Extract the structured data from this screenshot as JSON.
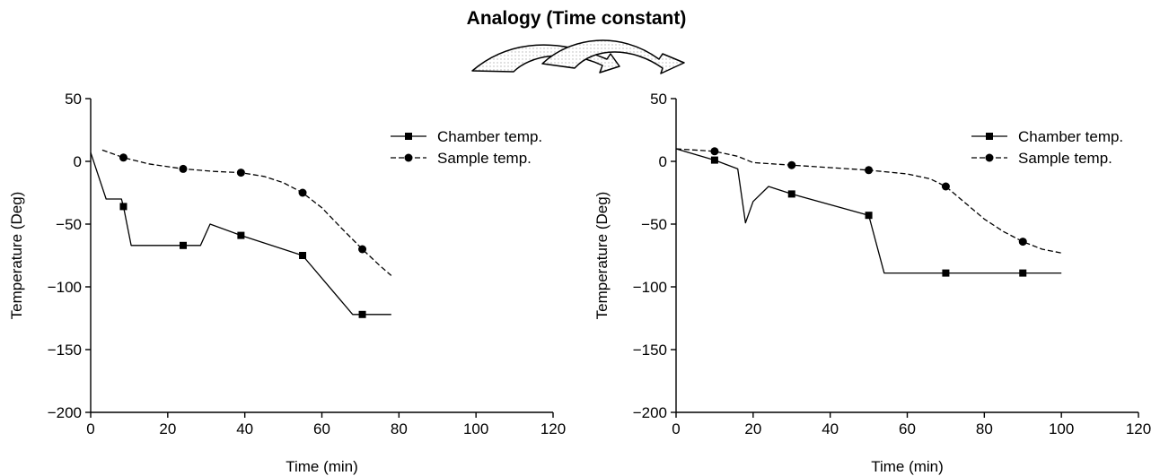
{
  "figure": {
    "title": "Analogy (Time constant)"
  },
  "chart_data": [
    {
      "type": "line",
      "xlabel": "Time (min)",
      "ylabel": "Temperature (Deg)",
      "xlim": [
        0,
        120
      ],
      "ylim": [
        -200,
        50
      ],
      "xticks": [
        0,
        20,
        40,
        60,
        80,
        100,
        120
      ],
      "yticks": [
        50,
        0,
        -50,
        -100,
        -150,
        -200
      ],
      "grid": false,
      "legend_position": "top-right",
      "series": [
        {
          "name": "Chamber temp.",
          "style": "solid",
          "marker": "square",
          "line": [
            [
              0,
              7
            ],
            [
              4,
              -30
            ],
            [
              8,
              -30
            ],
            [
              8.5,
              -36
            ],
            [
              10.5,
              -67
            ],
            [
              28.5,
              -67
            ],
            [
              31,
              -50
            ],
            [
              39,
              -59
            ],
            [
              55,
              -75
            ],
            [
              68,
              -122
            ],
            [
              78,
              -122
            ]
          ],
          "markers": [
            [
              8.5,
              -36
            ],
            [
              24,
              -67
            ],
            [
              39,
              -59
            ],
            [
              55,
              -75
            ],
            [
              70.5,
              -122
            ]
          ]
        },
        {
          "name": "Sample temp.",
          "style": "dashed",
          "marker": "circle",
          "line": [
            [
              3,
              9
            ],
            [
              8.5,
              3
            ],
            [
              15,
              -2
            ],
            [
              24,
              -6
            ],
            [
              32,
              -8
            ],
            [
              39,
              -9
            ],
            [
              45,
              -12
            ],
            [
              50,
              -17
            ],
            [
              55,
              -25
            ],
            [
              60,
              -37
            ],
            [
              65,
              -53
            ],
            [
              70.5,
              -70
            ],
            [
              75,
              -83
            ],
            [
              78,
              -91
            ]
          ],
          "markers": [
            [
              8.5,
              3
            ],
            [
              24,
              -6
            ],
            [
              39,
              -9
            ],
            [
              55,
              -25
            ],
            [
              70.5,
              -70
            ]
          ]
        }
      ]
    },
    {
      "type": "line",
      "xlabel": "Time (min)",
      "ylabel": "Temperature (Deg)",
      "xlim": [
        0,
        120
      ],
      "ylim": [
        -200,
        50
      ],
      "xticks": [
        0,
        20,
        40,
        60,
        80,
        100,
        120
      ],
      "yticks": [
        50,
        0,
        -50,
        -100,
        -150,
        -200
      ],
      "grid": false,
      "legend_position": "top-right",
      "series": [
        {
          "name": "Chamber temp.",
          "style": "solid",
          "marker": "square",
          "line": [
            [
              0,
              10
            ],
            [
              10,
              1
            ],
            [
              16,
              -6
            ],
            [
              18,
              -49
            ],
            [
              20,
              -32
            ],
            [
              24,
              -20
            ],
            [
              30,
              -26
            ],
            [
              50,
              -43
            ],
            [
              54,
              -89
            ],
            [
              100,
              -89
            ]
          ],
          "markers": [
            [
              10,
              1
            ],
            [
              30,
              -26
            ],
            [
              50,
              -43
            ],
            [
              70,
              -89
            ],
            [
              90,
              -89
            ]
          ]
        },
        {
          "name": "Sample temp.",
          "style": "dashed",
          "marker": "circle",
          "line": [
            [
              0,
              10
            ],
            [
              10,
              8
            ],
            [
              16,
              4
            ],
            [
              20,
              -1
            ],
            [
              30,
              -3
            ],
            [
              40,
              -5
            ],
            [
              50,
              -7
            ],
            [
              60,
              -10
            ],
            [
              66,
              -14
            ],
            [
              70,
              -20
            ],
            [
              75,
              -33
            ],
            [
              80,
              -46
            ],
            [
              85,
              -56
            ],
            [
              90,
              -64
            ],
            [
              95,
              -70
            ],
            [
              100,
              -73
            ]
          ],
          "markers": [
            [
              10,
              8
            ],
            [
              30,
              -3
            ],
            [
              50,
              -7
            ],
            [
              70,
              -20
            ],
            [
              90,
              -64
            ]
          ]
        }
      ]
    }
  ]
}
